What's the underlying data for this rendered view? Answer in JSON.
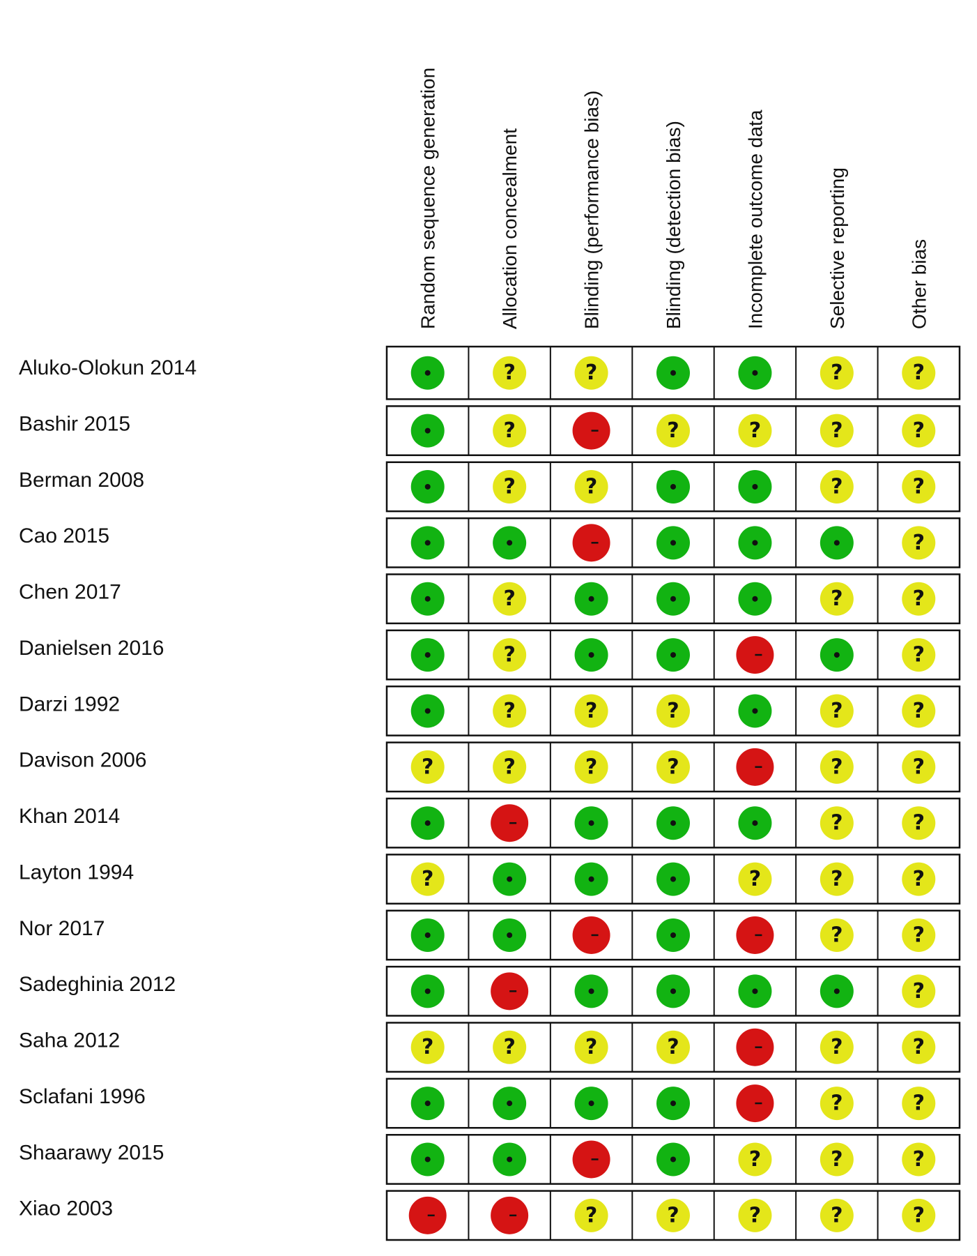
{
  "chart_data": {
    "type": "table",
    "columns": [
      "Random sequence generation",
      "Allocation concealment",
      "Blinding (performance bias)",
      "Blinding (detection bias)",
      "Incomplete outcome data",
      "Selective reporting",
      "Other bias"
    ],
    "rows": [
      {
        "study": "Aluko-Olokun 2014",
        "ratings": [
          "low",
          "unclear",
          "unclear",
          "low",
          "low",
          "unclear",
          "unclear"
        ]
      },
      {
        "study": "Bashir 2015",
        "ratings": [
          "low",
          "unclear",
          "high",
          "unclear",
          "unclear",
          "unclear",
          "unclear"
        ]
      },
      {
        "study": "Berman 2008",
        "ratings": [
          "low",
          "unclear",
          "unclear",
          "low",
          "low",
          "unclear",
          "unclear"
        ]
      },
      {
        "study": "Cao 2015",
        "ratings": [
          "low",
          "low",
          "high",
          "low",
          "low",
          "low",
          "unclear"
        ]
      },
      {
        "study": "Chen 2017",
        "ratings": [
          "low",
          "unclear",
          "low",
          "low",
          "low",
          "unclear",
          "unclear"
        ]
      },
      {
        "study": "Danielsen 2016",
        "ratings": [
          "low",
          "unclear",
          "low",
          "low",
          "high",
          "low",
          "unclear"
        ]
      },
      {
        "study": "Darzi 1992",
        "ratings": [
          "low",
          "unclear",
          "unclear",
          "unclear",
          "low",
          "unclear",
          "unclear"
        ]
      },
      {
        "study": "Davison 2006",
        "ratings": [
          "unclear",
          "unclear",
          "unclear",
          "unclear",
          "high",
          "unclear",
          "unclear"
        ]
      },
      {
        "study": "Khan 2014",
        "ratings": [
          "low",
          "high",
          "low",
          "low",
          "low",
          "unclear",
          "unclear"
        ]
      },
      {
        "study": "Layton 1994",
        "ratings": [
          "unclear",
          "low",
          "low",
          "low",
          "unclear",
          "unclear",
          "unclear"
        ]
      },
      {
        "study": "Nor 2017",
        "ratings": [
          "low",
          "low",
          "high",
          "low",
          "high",
          "unclear",
          "unclear"
        ]
      },
      {
        "study": "Sadeghinia 2012",
        "ratings": [
          "low",
          "high",
          "low",
          "low",
          "low",
          "low",
          "unclear"
        ]
      },
      {
        "study": "Saha 2012",
        "ratings": [
          "unclear",
          "unclear",
          "unclear",
          "unclear",
          "high",
          "unclear",
          "unclear"
        ]
      },
      {
        "study": "Sclafani 1996",
        "ratings": [
          "low",
          "low",
          "low",
          "low",
          "high",
          "unclear",
          "unclear"
        ]
      },
      {
        "study": "Shaarawy 2015",
        "ratings": [
          "low",
          "low",
          "high",
          "low",
          "unclear",
          "unclear",
          "unclear"
        ]
      },
      {
        "study": "Xiao 2003",
        "ratings": [
          "high",
          "high",
          "unclear",
          "unclear",
          "unclear",
          "unclear",
          "unclear"
        ]
      }
    ],
    "symbols": {
      "low": "+",
      "unclear": "?",
      "high": "-"
    },
    "colors": {
      "low": "#12b312",
      "unclear": "#e4e61a",
      "high": "#d51414"
    },
    "title": "",
    "xlabel": "",
    "ylabel": ""
  }
}
